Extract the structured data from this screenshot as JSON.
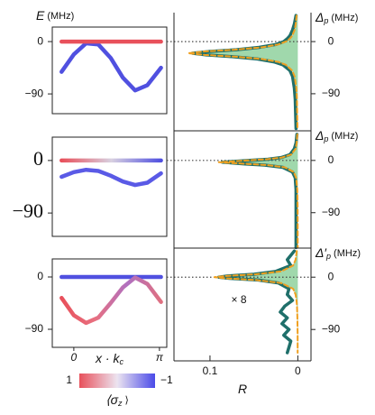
{
  "chart_data": [
    {
      "type": "line",
      "ylabel": {
        "main": "E",
        "unit": "(MHz)"
      },
      "x": [
        -0.45,
        0,
        0.45,
        0.9,
        1.35,
        1.8,
        2.25,
        2.7,
        3.2
      ],
      "xlim": [
        -0.79,
        3.41
      ],
      "ylim": [
        -124,
        25
      ],
      "yticks": [
        0,
        {
          "value": -90,
          "label": "−90"
        }
      ],
      "series": [
        {
          "color": "#5050e0",
          "values": [
            -52,
            -22,
            -3,
            -5,
            -28,
            -62,
            -84,
            -75,
            -45
          ]
        },
        {
          "color": "#e8505b",
          "values": [
            0,
            0,
            0,
            0,
            0,
            0,
            0,
            0,
            0
          ]
        }
      ]
    },
    {
      "type": "line",
      "x": [
        -0.45,
        0,
        0.45,
        0.9,
        1.35,
        1.8,
        2.25,
        2.7,
        3.2
      ],
      "xlim": [
        -0.79,
        3.41
      ],
      "ylim": [
        -130,
        40
      ],
      "yticks": [
        0,
        {
          "value": -90,
          "label": "−90"
        }
      ],
      "series": [
        {
          "color": "#5a5ae6",
          "values": [
            -28,
            -20,
            -16,
            -18,
            -26,
            -36,
            -42,
            -38,
            -22
          ]
        },
        {
          "color": [
            "#e8505b",
            "#d8d0e0",
            "#5050e0"
          ],
          "values": [
            0,
            0,
            0,
            0,
            0,
            0,
            0,
            0,
            0
          ]
        }
      ]
    },
    {
      "type": "line",
      "x": [
        -0.45,
        0,
        0.45,
        0.9,
        1.35,
        1.8,
        2.25,
        2.7,
        3.2
      ],
      "xlim": [
        -0.79,
        3.41
      ],
      "ylim": [
        -121,
        31
      ],
      "yticks": [
        0,
        {
          "value": -90,
          "label": "−90"
        }
      ],
      "xticks": [
        0,
        {
          "value": 3.1416,
          "label": "π"
        }
      ],
      "xlabel": {
        "main": "x · k",
        "sub": "c"
      },
      "series": [
        {
          "color": "#5050e0",
          "values": [
            0,
            0,
            0,
            0,
            0,
            0,
            0,
            0,
            0
          ]
        },
        {
          "color": [
            "#e8505b",
            "#e87080",
            "#b070c0",
            "#e07080"
          ],
          "values": [
            -36,
            -66,
            -79,
            -70,
            -45,
            -18,
            -1,
            -12,
            -43
          ]
        }
      ],
      "colorbar": {
        "colors": [
          "#e8505b",
          "#ece4f0",
          "#4a4ae8"
        ],
        "ticks": [
          1,
          {
            "value": -1,
            "label": "−1"
          }
        ],
        "label": {
          "main": "⟨σ",
          "sub": "z",
          "unit": "⟩"
        }
      }
    },
    {
      "type": "area",
      "ylabel": {
        "main": "Δ",
        "sub": "p",
        "unit": "(MHz)"
      },
      "x": [
        45,
        30,
        20,
        10,
        5,
        0,
        -5,
        -10,
        -14,
        -17,
        -20,
        -23,
        -26,
        -30,
        -35,
        -40,
        -50,
        -60,
        -80,
        -100,
        -150
      ],
      "xlim": [
        0.141,
        -0.015
      ],
      "ylim": [
        -154,
        50
      ],
      "yticks": [
        0,
        {
          "value": -90,
          "label": "−90"
        }
      ],
      "hline": 0,
      "series": [
        {
          "color": "#1f6f6a",
          "values": [
            0.002,
            0.004,
            0.006,
            0.009,
            0.012,
            0.016,
            0.025,
            0.044,
            0.07,
            0.1,
            0.12,
            0.104,
            0.075,
            0.046,
            0.027,
            0.017,
            0.009,
            0.006,
            0.004,
            0.003,
            0.002
          ]
        },
        {
          "color": "#f0a020",
          "dashed": true,
          "fill": "#8fd19e",
          "values": [
            0.0014,
            0.0024,
            0.0037,
            0.0064,
            0.0091,
            0.0136,
            0.0224,
            0.041,
            0.072,
            0.106,
            0.125,
            0.106,
            0.072,
            0.041,
            0.0224,
            0.0136,
            0.0064,
            0.0037,
            0.0017,
            0.001,
            0.0004
          ]
        }
      ]
    },
    {
      "type": "area",
      "ylabel": {
        "main": "Δ",
        "sub": "p",
        "unit": "(MHz)"
      },
      "x": [
        45,
        30,
        20,
        10,
        5,
        2,
        0,
        -3,
        -6,
        -8,
        -12,
        -20,
        -30,
        -50,
        -80,
        -150
      ],
      "xlim": [
        0.141,
        -0.015
      ],
      "ylim": [
        -151,
        51
      ],
      "yticks": [
        0,
        {
          "value": -90,
          "label": "−90"
        }
      ],
      "hline": 0,
      "series": [
        {
          "color": "#1f6f6a",
          "values": [
            0.001,
            0.002,
            0.004,
            0.009,
            0.019,
            0.034,
            0.055,
            0.086,
            0.06,
            0.038,
            0.017,
            0.006,
            0.003,
            0.002,
            0.002,
            0.002
          ]
        },
        {
          "color": "#f0a020",
          "dashed": true,
          "fill": "#8fd19e",
          "values": [
            0.0006,
            0.0013,
            0.0026,
            0.0078,
            0.018,
            0.035,
            0.058,
            0.09,
            0.058,
            0.035,
            0.0148,
            0.0047,
            0.0019,
            0.0006,
            0.0002,
            0.0001
          ]
        }
      ]
    },
    {
      "type": "area",
      "ylabel": {
        "main": "Δ′",
        "sub": "p",
        "unit": "(MHz)"
      },
      "x": [
        45,
        30,
        20,
        10,
        5,
        2,
        0,
        -2,
        -5,
        -10,
        -20,
        -30,
        -40,
        -50,
        -60,
        -70,
        -80,
        -90,
        -100,
        -110,
        -130
      ],
      "xlim": [
        0.141,
        -0.015
      ],
      "ylim": [
        -144,
        50
      ],
      "yticks": [
        0,
        {
          "value": -90,
          "label": "−90"
        }
      ],
      "hline": 0,
      "xticks": [
        0.1,
        0
      ],
      "xlabel": {
        "main": "R"
      },
      "annotation": "× 8",
      "series": [
        {
          "color": "#1f6f6a",
          "values": [
            0.004,
            0.012,
            0.008,
            0.025,
            0.05,
            0.08,
            0.09,
            0.078,
            0.045,
            0.022,
            0.01,
            0.012,
            0.006,
            0.015,
            0.02,
            0.012,
            0.018,
            0.01,
            0.016,
            0.008,
            0.012
          ]
        },
        {
          "color": "#f0a020",
          "dashed": true,
          "fill": "#8fd19e",
          "values": [
            0.0012,
            0.0026,
            0.0053,
            0.019,
            0.0475,
            0.082,
            0.095,
            0.082,
            0.0475,
            0.019,
            0.0053,
            0.0026,
            0.0015,
            0.00094,
            0.00066,
            0.00048,
            0.00037,
            0.00029,
            0.00024,
            0.0002,
            0.00014
          ]
        }
      ]
    }
  ]
}
